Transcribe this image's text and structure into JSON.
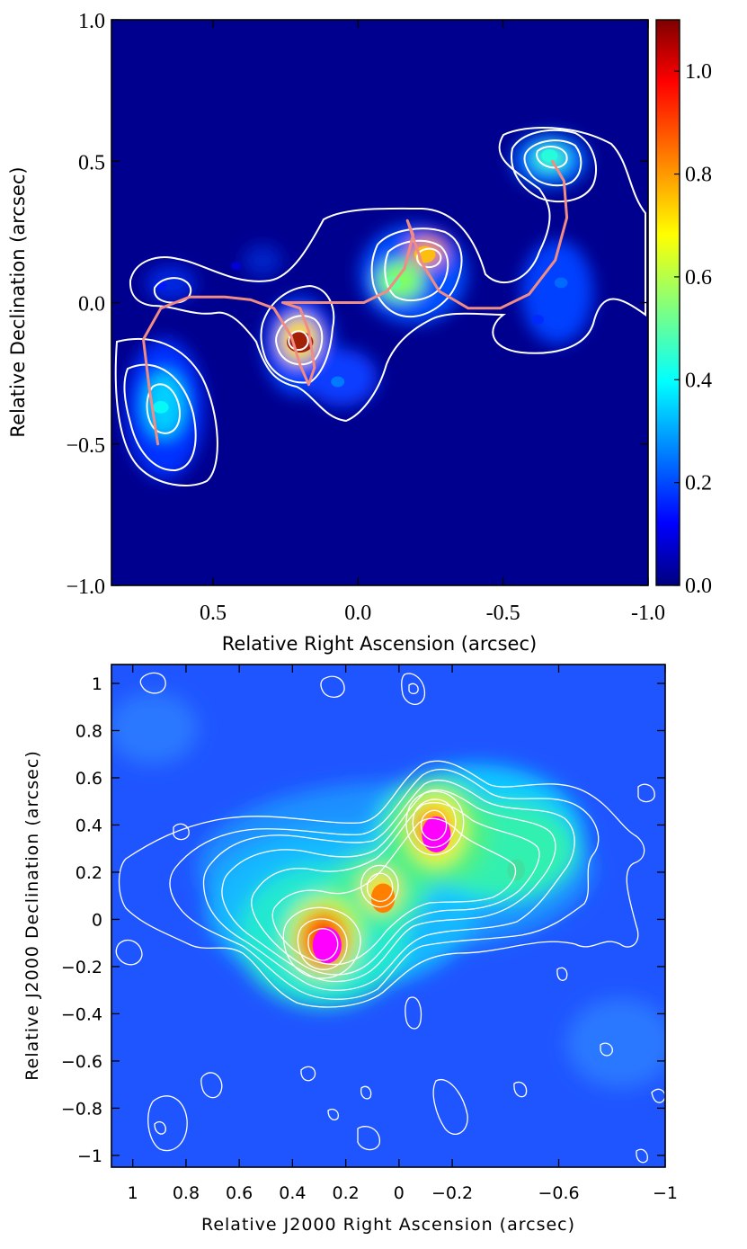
{
  "chart_data": [
    {
      "type": "heatmap",
      "title": "",
      "xlabel": "Relative Right Ascension (arcsec)",
      "ylabel": "Relative Declination (arcsec)",
      "xlim": [
        0.85,
        -1.0
      ],
      "ylim": [
        -1.0,
        1.0
      ],
      "x_ticks": [
        0.5,
        0.0,
        -0.5,
        -1.0
      ],
      "x_tick_labels": [
        "0.5",
        "0.0",
        "-0.5",
        "-1.0"
      ],
      "y_ticks": [
        1.0,
        0.5,
        0.0,
        -0.5,
        -1.0
      ],
      "y_tick_labels": [
        "1.0",
        "0.5",
        "0.0",
        "−0.5",
        "−1.0"
      ],
      "colorbar": {
        "range": [
          0.0,
          1.1
        ],
        "ticks": [
          1.0,
          0.8,
          0.6,
          0.4,
          0.2,
          0.0
        ],
        "tick_labels": [
          "1.0",
          "0.8",
          "0.6",
          "0.4",
          "0.2",
          "0.0"
        ],
        "colormap": "jet"
      },
      "sources": [
        {
          "x": 0.68,
          "y": -0.37,
          "peak": 0.42
        },
        {
          "x": 0.2,
          "y": -0.14,
          "peak": 1.08
        },
        {
          "x": 0.07,
          "y": -0.28,
          "peak": 0.28
        },
        {
          "x": -0.23,
          "y": 0.17,
          "peak": 0.75
        },
        {
          "x": -0.12,
          "y": 0.07,
          "peak": 0.52
        },
        {
          "x": -0.66,
          "y": 0.52,
          "peak": 0.45
        },
        {
          "x": -0.7,
          "y": 0.07,
          "peak": 0.26
        },
        {
          "x": -0.62,
          "y": -0.06,
          "peak": 0.18
        },
        {
          "x": 0.68,
          "y": 0.06,
          "peak": 0.16
        },
        {
          "x": 0.42,
          "y": 0.13,
          "peak": 0.1
        }
      ],
      "contour_levels": [
        0.05,
        0.16,
        0.3,
        0.5
      ],
      "track_color": "#f08c84",
      "track": [
        [
          0.69,
          -0.5
        ],
        [
          0.72,
          -0.3
        ],
        [
          0.74,
          -0.13
        ],
        [
          0.68,
          -0.02
        ],
        [
          0.58,
          0.02
        ],
        [
          0.46,
          0.02
        ],
        [
          0.37,
          0.01
        ],
        [
          0.29,
          -0.02
        ],
        [
          0.23,
          -0.12
        ],
        [
          0.2,
          -0.22
        ],
        [
          0.17,
          -0.29
        ],
        [
          0.15,
          -0.23
        ],
        [
          0.17,
          -0.1
        ],
        [
          0.2,
          -0.02
        ],
        [
          0.26,
          0.0
        ],
        [
          0.1,
          0.0
        ],
        [
          -0.02,
          0.0
        ],
        [
          -0.1,
          0.04
        ],
        [
          -0.16,
          0.12
        ],
        [
          -0.19,
          0.24
        ],
        [
          -0.17,
          0.29
        ],
        [
          -0.22,
          0.14
        ],
        [
          -0.28,
          0.04
        ],
        [
          -0.38,
          -0.02
        ],
        [
          -0.49,
          -0.02
        ],
        [
          -0.59,
          0.03
        ],
        [
          -0.68,
          0.15
        ],
        [
          -0.72,
          0.3
        ],
        [
          -0.71,
          0.43
        ],
        [
          -0.67,
          0.5
        ]
      ]
    },
    {
      "type": "heatmap",
      "title": "",
      "xlabel": "Relative J2000 Right Ascension (arcsec)",
      "ylabel": "Relative J2000 Declination (arcsec)",
      "xlim": [
        1.08,
        -1.0
      ],
      "ylim": [
        -1.05,
        1.08
      ],
      "x_ticks": [
        1.0,
        0.8,
        0.6,
        0.4,
        0.2,
        0.0,
        -0.2,
        -0.6,
        -1.0
      ],
      "x_tick_labels": [
        "1",
        "0.8",
        "0.6",
        "0.4",
        "0.2",
        "0",
        "−0.2",
        "−0.6",
        "−1"
      ],
      "y_ticks": [
        1.0,
        0.8,
        0.6,
        0.4,
        0.2,
        0.0,
        -0.2,
        -0.4,
        -0.6,
        -0.8,
        -1.0
      ],
      "y_tick_labels": [
        "1",
        "0.8",
        "0.6",
        "0.4",
        "0.2",
        "0",
        "−0.2",
        "−0.4",
        "−0.6",
        "−0.8",
        "−1"
      ],
      "colormap": "jet",
      "sources": [
        {
          "x": 0.27,
          "y": -0.11,
          "peak": 1.0
        },
        {
          "x": 0.06,
          "y": 0.09,
          "peak": 0.72
        },
        {
          "x": -0.14,
          "y": 0.36,
          "peak": 1.0
        },
        {
          "x": -0.44,
          "y": 0.21,
          "peak": 0.38
        }
      ]
    }
  ]
}
